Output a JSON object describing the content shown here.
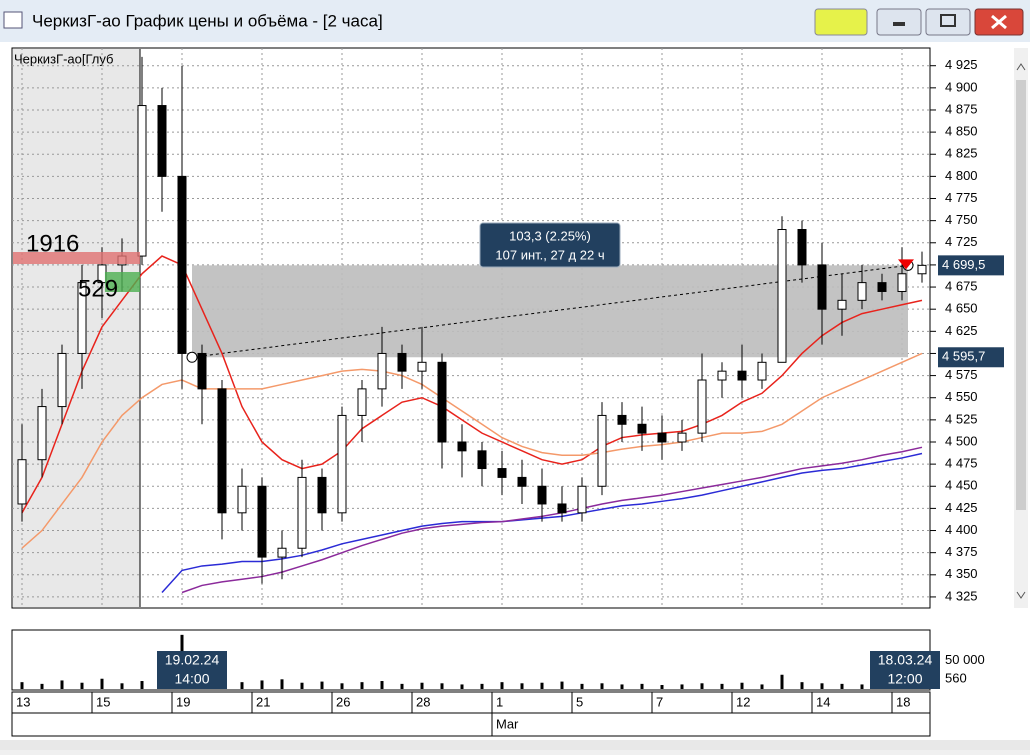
{
  "window": {
    "title": "ЧеркизГ-ао График цены и объёма - [2 часа]"
  },
  "chart_data": {
    "type": "candlestick",
    "pane_label": "ЧеркизГ-ао[Глуб",
    "categories": [
      "13",
      null,
      null,
      null,
      "15",
      null,
      null,
      null,
      "19",
      null,
      null,
      null,
      "21",
      null,
      null,
      null,
      "26",
      null,
      null,
      null,
      "28",
      null,
      null,
      null,
      "1",
      null,
      null,
      null,
      "5",
      null,
      null,
      null,
      "7",
      null,
      null,
      null,
      "12",
      null,
      null,
      null,
      "14",
      null,
      null,
      null,
      "18",
      null
    ],
    "month_label": "Mar",
    "open": [
      4430,
      4480,
      4540,
      4600,
      4680,
      4700,
      4710,
      4880,
      4800,
      4600,
      4560,
      4420,
      4450,
      4370,
      4380,
      4460,
      4420,
      4530,
      4560,
      4600,
      4580,
      4590,
      4500,
      4490,
      4470,
      4460,
      4450,
      4430,
      4420,
      4450,
      4530,
      4520,
      4510,
      4500,
      4510,
      4570,
      4580,
      4570,
      4590,
      4740,
      4700,
      4650,
      4660,
      4680,
      4670,
      4690
    ],
    "high": [
      4520,
      4560,
      4610,
      4700,
      4720,
      4730,
      4935,
      4900,
      4925,
      4610,
      4570,
      4470,
      4460,
      4400,
      4480,
      4470,
      4540,
      4570,
      4630,
      4610,
      4630,
      4600,
      4520,
      4500,
      4490,
      4480,
      4470,
      4450,
      4460,
      4545,
      4545,
      4540,
      4530,
      4525,
      4600,
      4590,
      4610,
      4600,
      4755,
      4750,
      4725,
      4690,
      4700,
      4690,
      4720,
      4715
    ],
    "low": [
      4410,
      4460,
      4520,
      4560,
      4640,
      4670,
      4700,
      4760,
      4560,
      4520,
      4390,
      4400,
      4340,
      4345,
      4370,
      4400,
      4410,
      4500,
      4540,
      4560,
      4560,
      4470,
      4460,
      4450,
      4440,
      4430,
      4410,
      4410,
      4410,
      4440,
      4500,
      4490,
      4480,
      4490,
      4500,
      4550,
      4550,
      4560,
      4590,
      4680,
      4610,
      4620,
      4650,
      4660,
      4660,
      4680
    ],
    "close": [
      4480,
      4540,
      4600,
      4680,
      4700,
      4710,
      4880,
      4800,
      4600,
      4560,
      4420,
      4450,
      4370,
      4380,
      4460,
      4420,
      4530,
      4560,
      4600,
      4580,
      4590,
      4500,
      4490,
      4470,
      4460,
      4450,
      4430,
      4420,
      4450,
      4530,
      4520,
      4510,
      4500,
      4510,
      4570,
      4580,
      4570,
      4590,
      4740,
      4700,
      4650,
      4660,
      4680,
      4670,
      4690,
      4699.5
    ],
    "lines": [
      {
        "color": "#e8231c",
        "values": [
          4420,
          4460,
          4520,
          4580,
          4630,
          4660,
          4690,
          4710,
          4700,
          4650,
          4600,
          4540,
          4500,
          4480,
          4470,
          4475,
          4490,
          4515,
          4530,
          4545,
          4550,
          4540,
          4525,
          4510,
          4500,
          4490,
          4480,
          4475,
          4480,
          4495,
          4505,
          4508,
          4510,
          4512,
          4520,
          4530,
          4545,
          4555,
          4575,
          4600,
          4620,
          4635,
          4645,
          4650,
          4655,
          4660
        ]
      },
      {
        "color": "#f4996a",
        "values": [
          4380,
          4400,
          4430,
          4460,
          4500,
          4530,
          4550,
          4565,
          4570,
          4560,
          4560,
          4560,
          4560,
          4565,
          4570,
          4575,
          4580,
          4582,
          4580,
          4575,
          4565,
          4550,
          4535,
          4520,
          4505,
          4495,
          4488,
          4485,
          4485,
          4488,
          4492,
          4495,
          4497,
          4500,
          4505,
          4510,
          4510,
          4512,
          4520,
          4535,
          4550,
          4560,
          4570,
          4580,
          4590,
          4600
        ]
      },
      {
        "color": "#2b2bd6",
        "values": [
          null,
          null,
          null,
          null,
          null,
          null,
          null,
          4330,
          4355,
          4360,
          4362,
          4365,
          4365,
          4368,
          4372,
          4378,
          4385,
          4390,
          4395,
          4400,
          4405,
          4408,
          4410,
          4410,
          4410,
          4412,
          4414,
          4416,
          4420,
          4424,
          4428,
          4430,
          4433,
          4436,
          4440,
          4445,
          4450,
          4455,
          4460,
          4465,
          4468,
          4470,
          4474,
          4478,
          4482,
          4487
        ]
      },
      {
        "color": "#8b2a9b",
        "values": [
          null,
          null,
          null,
          null,
          null,
          null,
          null,
          null,
          4330,
          4338,
          4342,
          4345,
          4348,
          4353,
          4360,
          4367,
          4375,
          4383,
          4390,
          4397,
          4402,
          4405,
          4407,
          4409,
          4410,
          4413,
          4416,
          4420,
          4425,
          4430,
          4434,
          4437,
          4440,
          4444,
          4448,
          4452,
          4456,
          4460,
          4465,
          4470,
          4473,
          4476,
          4480,
          4485,
          4489,
          4494
        ]
      }
    ],
    "ylim": [
      4312.5,
      4945
    ],
    "yticks": [
      {
        "value": 4325,
        "label": "4 325"
      },
      {
        "value": 4350,
        "label": "4 350"
      },
      {
        "value": 4375,
        "label": "4 375"
      },
      {
        "value": 4400,
        "label": "4 400"
      },
      {
        "value": 4425,
        "label": "4 425"
      },
      {
        "value": 4450,
        "label": "4 450"
      },
      {
        "value": 4475,
        "label": "4 475"
      },
      {
        "value": 4500,
        "label": "4 500"
      },
      {
        "value": 4525,
        "label": "4 525"
      },
      {
        "value": 4550,
        "label": "4 550"
      },
      {
        "value": 4575,
        "label": "4 575"
      },
      {
        "value": 4600,
        "label": "4 600"
      },
      {
        "value": 4625,
        "label": "4 625"
      },
      {
        "value": 4650,
        "label": "4 650"
      },
      {
        "value": 4675,
        "label": "4 675"
      },
      {
        "value": 4700,
        "label": "4 700"
      },
      {
        "value": 4725,
        "label": "4 725"
      },
      {
        "value": 4750,
        "label": "4 750"
      },
      {
        "value": 4775,
        "label": "4 775"
      },
      {
        "value": 4800,
        "label": "4 800"
      },
      {
        "value": 4825,
        "label": "4 825"
      },
      {
        "value": 4850,
        "label": "4 850"
      },
      {
        "value": 4875,
        "label": "4 875"
      },
      {
        "value": 4900,
        "label": "4 900"
      },
      {
        "value": 4925,
        "label": "4 925"
      }
    ],
    "grid": true,
    "price_markers": [
      {
        "value": 4699.5,
        "label": "4 699,5"
      },
      {
        "value": 4595.7,
        "label": "4 595,7"
      }
    ],
    "measure": {
      "text": "103,3 (2.25%)",
      "detail": "107 инт., 27 д 22 ч"
    },
    "depth": {
      "values": [
        1916,
        529
      ],
      "colors": [
        "#e07070",
        "#4caf50"
      ]
    },
    "volume": {
      "values": [
        12000,
        9000,
        15000,
        11000,
        18000,
        10000,
        14000,
        13000,
        95000,
        16000,
        20000,
        12000,
        15000,
        17000,
        11000,
        13000,
        10000,
        12000,
        14000,
        9000,
        11000,
        10000,
        8000,
        9000,
        12000,
        10000,
        11000,
        13000,
        9000,
        10000,
        8000,
        9000,
        7000,
        8000,
        10000,
        9000,
        11000,
        8000,
        25000,
        12000,
        10000,
        9000,
        8000,
        7000,
        9000,
        560
      ],
      "ylim": [
        0,
        100000
      ],
      "yticks": [
        {
          "value": 50000,
          "label": "50 000"
        }
      ],
      "current": 560
    },
    "cursor_labels": [
      {
        "date": "19.02.24",
        "time": "14:00"
      },
      {
        "date": "18.03.24",
        "time": "12:00"
      }
    ]
  }
}
